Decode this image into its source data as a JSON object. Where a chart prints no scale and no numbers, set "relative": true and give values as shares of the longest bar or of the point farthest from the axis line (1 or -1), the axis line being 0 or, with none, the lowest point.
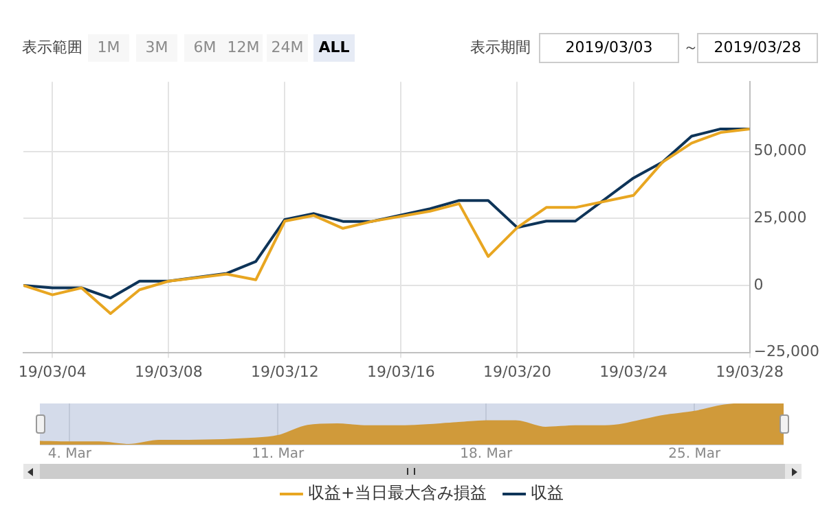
{
  "chart_data": [
    {
      "type": "line",
      "x": [
        "2019-03-03",
        "2019-03-04",
        "2019-03-05",
        "2019-03-06",
        "2019-03-07",
        "2019-03-08",
        "2019-03-10",
        "2019-03-11",
        "2019-03-12",
        "2019-03-13",
        "2019-03-14",
        "2019-03-15",
        "2019-03-17",
        "2019-03-18",
        "2019-03-19",
        "2019-03-20",
        "2019-03-21",
        "2019-03-22",
        "2019-03-24",
        "2019-03-25",
        "2019-03-26",
        "2019-03-27",
        "2019-03-28"
      ],
      "series": [
        {
          "name": "収益+当日最大含み損益",
          "color": "#e8a621",
          "values": [
            0,
            -3500,
            -900,
            -10500,
            -1600,
            1600,
            4200,
            2100,
            24000,
            26100,
            21300,
            23900,
            27700,
            30500,
            10800,
            21600,
            29100,
            29100,
            33600,
            46000,
            53100,
            57100,
            58400
          ]
        },
        {
          "name": "収益",
          "color": "#0e3458",
          "values": [
            0,
            -900,
            -900,
            -4700,
            1600,
            1600,
            4500,
            8900,
            24600,
            26800,
            23900,
            23900,
            28600,
            31700,
            31700,
            21600,
            24000,
            24000,
            40100,
            46000,
            55700,
            58400,
            58400
          ]
        }
      ],
      "xlim": [
        "2019-03-03",
        "2019-03-28"
      ],
      "xticks": [
        {
          "value": "2019-03-04",
          "label": "19/03/04"
        },
        {
          "value": "2019-03-08",
          "label": "19/03/08"
        },
        {
          "value": "2019-03-12",
          "label": "19/03/12"
        },
        {
          "value": "2019-03-16",
          "label": "19/03/16"
        },
        {
          "value": "2019-03-20",
          "label": "19/03/20"
        },
        {
          "value": "2019-03-24",
          "label": "19/03/24"
        },
        {
          "value": "2019-03-28",
          "label": "19/03/28"
        }
      ],
      "ylim": [
        -25000,
        76000
      ],
      "yticks": [
        {
          "value": -25000,
          "label": "−25,000"
        },
        {
          "value": 0,
          "label": "0"
        },
        {
          "value": 25000,
          "label": "25,000"
        },
        {
          "value": 50000,
          "label": "50,000"
        }
      ],
      "grid": true,
      "legend": "bottom",
      "marker": "none",
      "line_style": "solid",
      "annotations": [
        "表示範囲",
        "1M",
        "3M",
        "6M",
        "12M",
        "24M",
        "ALL",
        "表示期間",
        "2019/03/03",
        "～",
        "2019/03/28"
      ]
    },
    {
      "type": "area",
      "x": [
        "2019-03-03",
        "2019-03-04",
        "2019-03-05",
        "2019-03-06",
        "2019-03-07",
        "2019-03-08",
        "2019-03-10",
        "2019-03-11",
        "2019-03-12",
        "2019-03-13",
        "2019-03-14",
        "2019-03-15",
        "2019-03-17",
        "2019-03-18",
        "2019-03-19",
        "2019-03-20",
        "2019-03-21",
        "2019-03-22",
        "2019-03-24",
        "2019-03-25",
        "2019-03-26",
        "2019-03-27",
        "2019-03-28"
      ],
      "values": [
        0.075,
        0.061,
        0.061,
        0,
        0.099,
        0.099,
        0.146,
        0.215,
        0.464,
        0.5,
        0.453,
        0.453,
        0.528,
        0.577,
        0.577,
        0.417,
        0.456,
        0.456,
        0.71,
        0.804,
        0.959,
        1,
        1
      ],
      "color": "#d09a3a",
      "relative": true,
      "xlim": [
        "2019-03-03",
        "2019-03-28"
      ],
      "xticks": [
        {
          "value": "2019-03-04",
          "label": "4. Mar"
        },
        {
          "value": "2019-03-11",
          "label": "11. Mar"
        },
        {
          "value": "2019-03-18",
          "label": "18. Mar"
        },
        {
          "value": "2019-03-25",
          "label": "25. Mar"
        }
      ],
      "grid": "x",
      "tick_labels": "x"
    }
  ]
}
